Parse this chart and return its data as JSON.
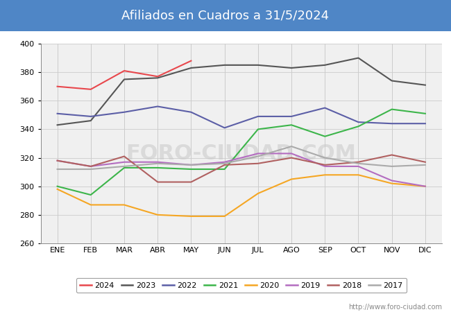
{
  "title": "Afiliados en Cuadros a 31/5/2024",
  "title_color": "#ffffff",
  "title_bg_color": "#4f86c6",
  "ylim": [
    260,
    400
  ],
  "yticks": [
    260,
    280,
    300,
    320,
    340,
    360,
    380,
    400
  ],
  "months": [
    "ENE",
    "FEB",
    "MAR",
    "ABR",
    "MAY",
    "JUN",
    "JUL",
    "AGO",
    "SEP",
    "OCT",
    "NOV",
    "DIC"
  ],
  "watermark": "FORO-CIUDAD.COM",
  "footer": "http://www.foro-ciudad.com",
  "series": {
    "2024": {
      "color": "#e8474c",
      "data": [
        370,
        368,
        381,
        377,
        388,
        null,
        null,
        null,
        null,
        null,
        null,
        null
      ]
    },
    "2023": {
      "color": "#555555",
      "data": [
        343,
        346,
        375,
        376,
        383,
        385,
        385,
        383,
        385,
        390,
        374,
        371
      ]
    },
    "2022": {
      "color": "#5b5ea6",
      "data": [
        351,
        349,
        352,
        356,
        352,
        341,
        349,
        349,
        355,
        345,
        344,
        344
      ]
    },
    "2021": {
      "color": "#3cb54a",
      "data": [
        300,
        294,
        313,
        313,
        312,
        312,
        340,
        343,
        335,
        342,
        354,
        351
      ]
    },
    "2020": {
      "color": "#f5a623",
      "data": [
        298,
        287,
        287,
        280,
        279,
        279,
        295,
        305,
        308,
        308,
        302,
        300
      ]
    },
    "2019": {
      "color": "#b36cc0",
      "data": [
        318,
        314,
        317,
        317,
        315,
        317,
        323,
        323,
        314,
        314,
        304,
        300
      ]
    },
    "2018": {
      "color": "#b06060",
      "data": [
        318,
        314,
        321,
        303,
        303,
        315,
        316,
        320,
        315,
        317,
        322,
        317
      ]
    },
    "2017": {
      "color": "#aaaaaa",
      "data": [
        312,
        312,
        314,
        316,
        315,
        316,
        321,
        328,
        320,
        316,
        314,
        315
      ]
    }
  },
  "legend_order": [
    "2024",
    "2023",
    "2022",
    "2021",
    "2020",
    "2019",
    "2018",
    "2017"
  ],
  "grid_color": "#cccccc",
  "plot_bg_color": "#f0f0f0"
}
